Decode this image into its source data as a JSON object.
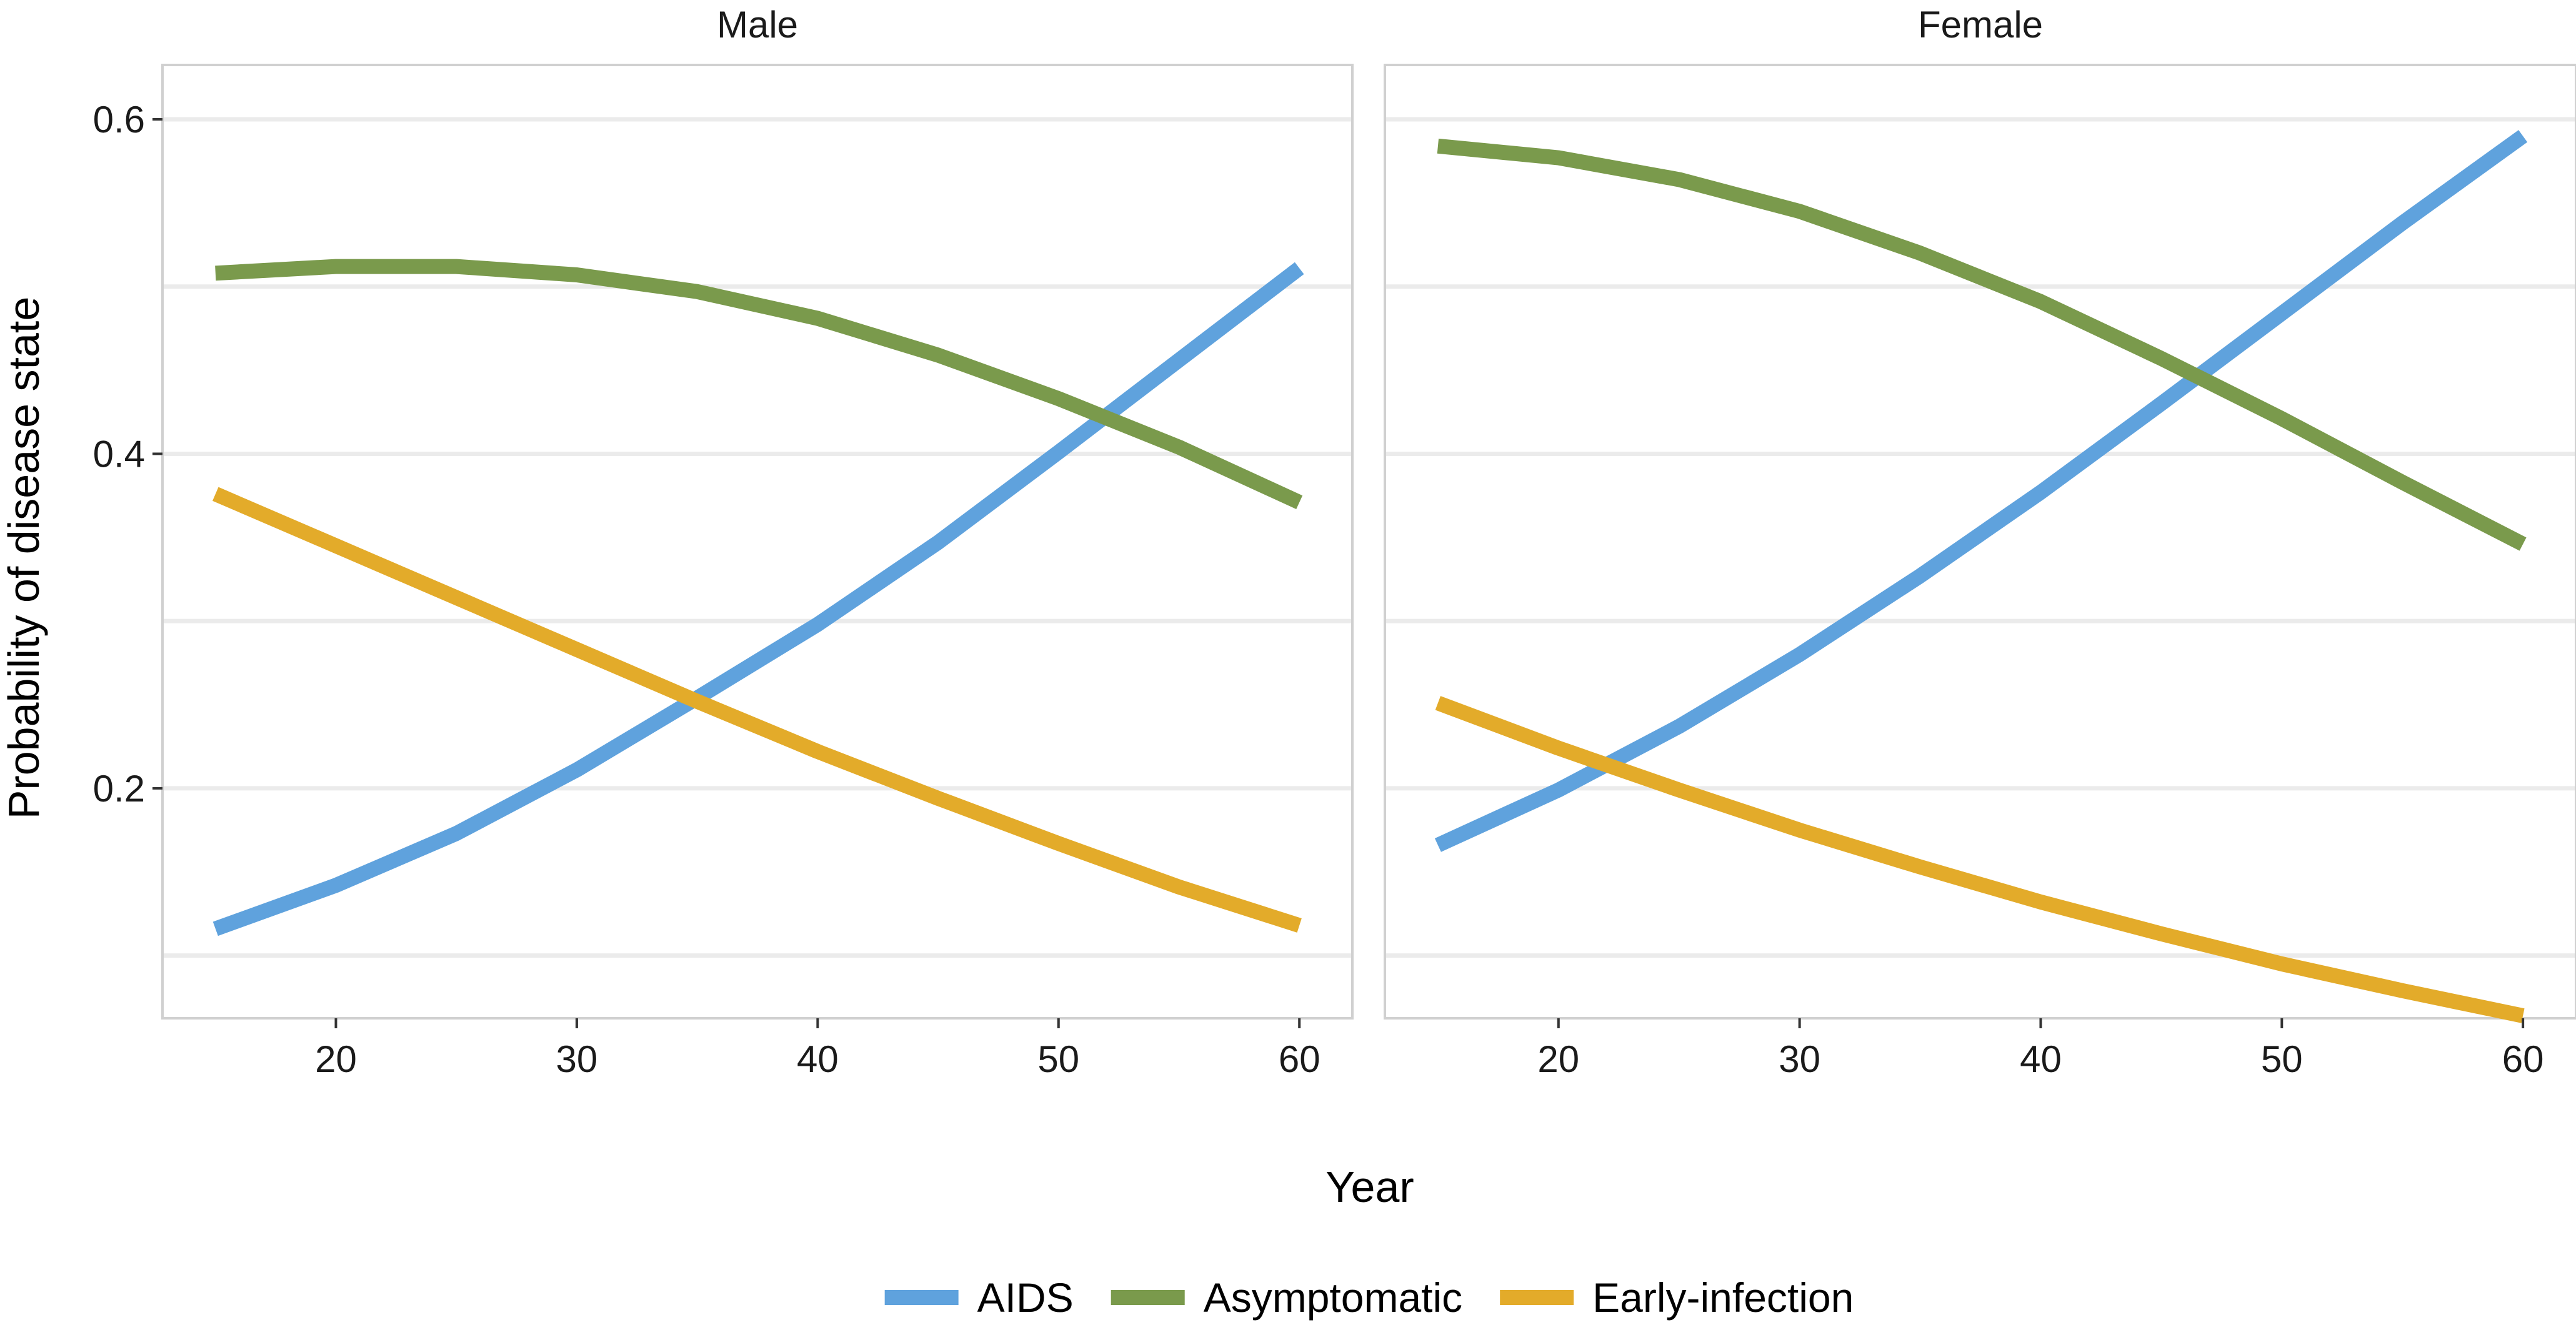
{
  "chart_data": {
    "type": "line",
    "xlabel": "Year",
    "ylabel": "Probability of disease state",
    "xlim": [
      12.8,
      62.2
    ],
    "ylim": [
      0.0625,
      0.6325
    ],
    "x_ticks": [
      20,
      30,
      40,
      50,
      60
    ],
    "y_ticks": [
      0.2,
      0.4,
      0.6
    ],
    "y_minor_grid": [
      0.1,
      0.3,
      0.5
    ],
    "grid": true,
    "legend_position": "bottom",
    "colors": {
      "AIDS": "#5fa2dd",
      "Asymptomatic": "#7a9a4c",
      "Early-infection": "#e3ab2a"
    },
    "legend": [
      {
        "name": "AIDS",
        "color": "#5fa2dd"
      },
      {
        "name": "Asymptomatic",
        "color": "#7a9a4c"
      },
      {
        "name": "Early-infection",
        "color": "#e3ab2a"
      }
    ],
    "panels": [
      {
        "title": "Male",
        "x": [
          15,
          20,
          25,
          30,
          35,
          40,
          45,
          50,
          55,
          60
        ],
        "series": [
          {
            "name": "AIDS",
            "values": [
              0.116,
              0.142,
              0.173,
              0.211,
              0.254,
              0.298,
              0.347,
              0.401,
              0.456,
              0.511
            ]
          },
          {
            "name": "Asymptomatic",
            "values": [
              0.508,
              0.512,
              0.512,
              0.507,
              0.497,
              0.481,
              0.459,
              0.433,
              0.404,
              0.371
            ]
          },
          {
            "name": "Early-infection",
            "values": [
              0.376,
              0.345,
              0.314,
              0.283,
              0.252,
              0.222,
              0.194,
              0.167,
              0.141,
              0.118
            ]
          }
        ]
      },
      {
        "title": "Female",
        "x": [
          15,
          20,
          25,
          30,
          35,
          40,
          45,
          50,
          55,
          60
        ],
        "series": [
          {
            "name": "AIDS",
            "values": [
              0.166,
              0.199,
              0.237,
              0.28,
              0.327,
              0.377,
              0.43,
              0.484,
              0.538,
              0.59
            ]
          },
          {
            "name": "Asymptomatic",
            "values": [
              0.584,
              0.577,
              0.564,
              0.545,
              0.52,
              0.491,
              0.457,
              0.421,
              0.383,
              0.346
            ]
          },
          {
            "name": "Early-infection",
            "values": [
              0.251,
              0.224,
              0.199,
              0.175,
              0.153,
              0.132,
              0.113,
              0.095,
              0.079,
              0.064
            ]
          }
        ]
      }
    ]
  }
}
